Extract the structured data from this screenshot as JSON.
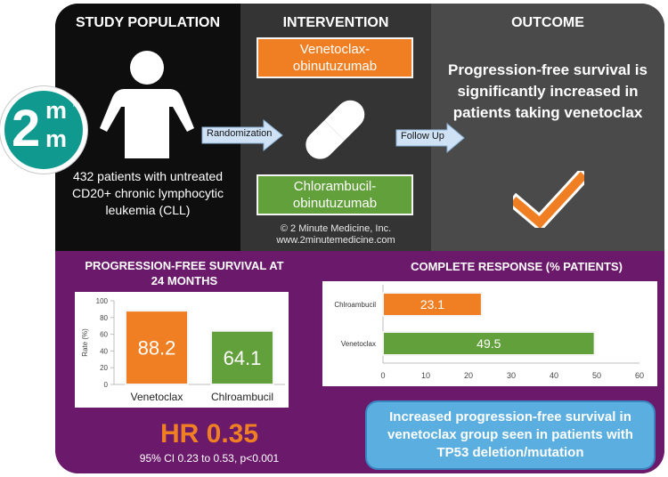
{
  "sections": {
    "population_title": "STUDY POPULATION",
    "intervention_title": "INTERVENTION",
    "outcome_title": "OUTCOME"
  },
  "population": {
    "text": "432 patients with untreated CD20+ chronic lymphocytic leukemia (CLL)"
  },
  "intervention": {
    "top_arm": "Venetoclax-obinutuzumab",
    "bottom_arm": "Chlorambucil-obinutuzumab",
    "arrow1_label": "Randomization",
    "arrow2_label": "Follow Up",
    "copyright_line1": "© 2 Minute Medicine, Inc.",
    "copyright_line2": "www.2minutemedicine.com"
  },
  "outcome": {
    "text": "Progression-free survival is significantly increased in patients taking venetoclax"
  },
  "logo": {
    "number": "2",
    "letter": "m"
  },
  "colors": {
    "orange": "#f07f23",
    "green": "#62a03b",
    "purple": "#6b1a6b",
    "teal": "#109a8f",
    "blue": "#5aaee0"
  },
  "hr": {
    "value": "HR 0.35",
    "ci": "95% CI 0.23 to 0.53, p<0.001"
  },
  "note": "Increased progression-free survival in venetoclax group seen in patients with TP53 deletion/mutation",
  "chart_data": [
    {
      "type": "bar",
      "title": "PROGRESSION-FREE SURVIVAL AT 24 MONTHS",
      "categories": [
        "Venetoclax",
        "Chlroambucil"
      ],
      "values": [
        88.2,
        64.1
      ],
      "value_labels": [
        "88.2",
        "64.1"
      ],
      "colors": [
        "#f07f23",
        "#62a03b"
      ],
      "ylabel": "Rate (%)",
      "ylim": [
        0,
        100
      ],
      "yticks": [
        "0",
        "20",
        "40",
        "60",
        "80",
        "100"
      ],
      "grid": false
    },
    {
      "type": "bar",
      "orientation": "horizontal",
      "title": "COMPLETE RESPONSE (% PATIENTS)",
      "categories": [
        "Chlroambucil",
        "Venetoclax"
      ],
      "values": [
        23.1,
        49.5
      ],
      "value_labels": [
        "23.1",
        "49.5"
      ],
      "colors": [
        "#f07f23",
        "#62a03b"
      ],
      "xlim": [
        0,
        60
      ],
      "xticks": [
        "0",
        "10",
        "20",
        "30",
        "40",
        "50",
        "60"
      ],
      "grid": false
    }
  ]
}
